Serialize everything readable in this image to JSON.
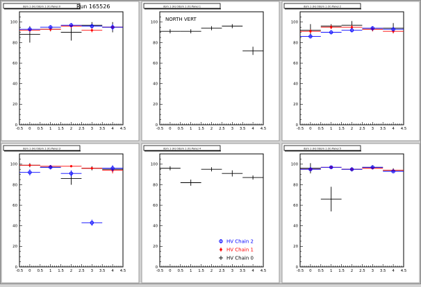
{
  "run_label": "Run 165526",
  "legend": [
    {
      "label": "HV Chain 2",
      "color": "#0000ff",
      "marker": "circle"
    },
    {
      "label": "HV Chain 1",
      "color": "#ff0000",
      "marker": "star"
    },
    {
      "label": "HV Chain 0",
      "color": "#000000",
      "marker": "cross"
    }
  ],
  "chart_data": [
    {
      "type": "scatter",
      "title": "dom 1 (H) Odom 1 (V) Panel 0",
      "annotation": "Run 165526",
      "xlim": [
        -0.5,
        4.5
      ],
      "ylim": [
        0,
        110
      ],
      "xticks": [
        "-0.5",
        "0",
        "0.5",
        "1",
        "1.5",
        "2",
        "2.5",
        "3",
        "3.5",
        "4",
        "4.5"
      ],
      "yticks": [
        "0",
        "20",
        "40",
        "60",
        "80",
        "100"
      ],
      "series": [
        {
          "name": "HV Chain 0",
          "color": "#000000",
          "points": [
            {
              "x": 0,
              "y": 88,
              "yerr": 8
            },
            {
              "x": 1,
              "y": 93,
              "yerr": 2
            },
            {
              "x": 2,
              "y": 90,
              "yerr": 8
            },
            {
              "x": 3,
              "y": 97,
              "yerr": 3
            },
            {
              "x": 4,
              "y": 95,
              "yerr": 5
            }
          ]
        },
        {
          "name": "HV Chain 1",
          "color": "#ff0000",
          "points": [
            {
              "x": 0,
              "y": 92,
              "yerr": 2
            },
            {
              "x": 1,
              "y": 93,
              "yerr": 2
            },
            {
              "x": 2,
              "y": 96,
              "yerr": 2
            },
            {
              "x": 3,
              "y": 92,
              "yerr": 2
            },
            {
              "x": 4,
              "y": 95,
              "yerr": 2
            }
          ]
        },
        {
          "name": "HV Chain 2",
          "color": "#0000ff",
          "points": [
            {
              "x": 0,
              "y": 93,
              "yerr": 2
            },
            {
              "x": 1,
              "y": 95,
              "yerr": 2
            },
            {
              "x": 2,
              "y": 97,
              "yerr": 2
            },
            {
              "x": 3,
              "y": 96,
              "yerr": 2
            },
            {
              "x": 4,
              "y": 95,
              "yerr": 3
            }
          ]
        }
      ]
    },
    {
      "type": "scatter",
      "title": "dom 1 (H) Odom 1 (V) Panel 1",
      "annotation": "NORTH VERT",
      "xlim": [
        -0.5,
        4.5
      ],
      "ylim": [
        0,
        110
      ],
      "xticks": [
        "-0.5",
        "0",
        "0.5",
        "1",
        "1.5",
        "2",
        "2.5",
        "3",
        "3.5",
        "4",
        "4.5"
      ],
      "yticks": [
        "0",
        "20",
        "40",
        "60",
        "80",
        "100"
      ],
      "series": [
        {
          "name": "HV Chain 0",
          "color": "#000000",
          "points": [
            {
              "x": 0,
              "y": 91,
              "yerr": 2
            },
            {
              "x": 1,
              "y": 91,
              "yerr": 2
            },
            {
              "x": 2,
              "y": 94,
              "yerr": 2
            },
            {
              "x": 3,
              "y": 96,
              "yerr": 2
            },
            {
              "x": 4,
              "y": 72,
              "yerr": 4
            }
          ]
        }
      ]
    },
    {
      "type": "scatter",
      "title": "dom 1 (H) Odom 1 (V) Panel 2",
      "annotation": "",
      "xlim": [
        -0.5,
        4.5
      ],
      "ylim": [
        0,
        110
      ],
      "xticks": [
        "-0.5",
        "0",
        "0.5",
        "1",
        "1.5",
        "2",
        "2.5",
        "3",
        "3.5",
        "4",
        "4.5"
      ],
      "yticks": [
        "0",
        "20",
        "40",
        "60",
        "80",
        "100"
      ],
      "series": [
        {
          "name": "HV Chain 0",
          "color": "#000000",
          "points": [
            {
              "x": 0,
              "y": 92,
              "yerr": 6
            },
            {
              "x": 1,
              "y": 96,
              "yerr": 2
            },
            {
              "x": 2,
              "y": 97,
              "yerr": 4
            },
            {
              "x": 3,
              "y": 93,
              "yerr": 2
            },
            {
              "x": 4,
              "y": 94,
              "yerr": 5
            }
          ]
        },
        {
          "name": "HV Chain 1",
          "color": "#ff0000",
          "points": [
            {
              "x": 0,
              "y": 91,
              "yerr": 2
            },
            {
              "x": 1,
              "y": 95,
              "yerr": 2
            },
            {
              "x": 2,
              "y": 95,
              "yerr": 2
            },
            {
              "x": 3,
              "y": 93,
              "yerr": 2
            },
            {
              "x": 4,
              "y": 91,
              "yerr": 2
            }
          ]
        },
        {
          "name": "HV Chain 2",
          "color": "#0000ff",
          "points": [
            {
              "x": 0,
              "y": 86,
              "yerr": 2
            },
            {
              "x": 1,
              "y": 90,
              "yerr": 2
            },
            {
              "x": 2,
              "y": 92,
              "yerr": 2
            },
            {
              "x": 3,
              "y": 94,
              "yerr": 2
            },
            {
              "x": 4,
              "y": 93,
              "yerr": 2
            }
          ]
        }
      ]
    },
    {
      "type": "scatter",
      "title": "dom 1 (H) Odom 1 (V) Panel 3",
      "annotation": "",
      "xlim": [
        -0.5,
        4.5
      ],
      "ylim": [
        0,
        110
      ],
      "xticks": [
        "-0.5",
        "0",
        "0.5",
        "1",
        "1.5",
        "2",
        "2.5",
        "3",
        "3.5",
        "4",
        "4.5"
      ],
      "yticks": [
        "0",
        "20",
        "40",
        "60",
        "80",
        "100"
      ],
      "series": [
        {
          "name": "HV Chain 0",
          "color": "#000000",
          "points": [
            {
              "x": 0,
              "y": 99,
              "yerr": 2
            },
            {
              "x": 1,
              "y": 97,
              "yerr": 2
            },
            {
              "x": 2,
              "y": 86,
              "yerr": 6
            },
            {
              "x": 3,
              "y": 96,
              "yerr": 2
            },
            {
              "x": 4,
              "y": 95,
              "yerr": 3
            }
          ]
        },
        {
          "name": "HV Chain 1",
          "color": "#ff0000",
          "points": [
            {
              "x": 0,
              "y": 99,
              "yerr": 1
            },
            {
              "x": 1,
              "y": 98,
              "yerr": 1
            },
            {
              "x": 2,
              "y": 98,
              "yerr": 1
            },
            {
              "x": 3,
              "y": 96,
              "yerr": 1
            },
            {
              "x": 4,
              "y": 94,
              "yerr": 3
            }
          ]
        },
        {
          "name": "HV Chain 2",
          "color": "#0000ff",
          "points": [
            {
              "x": 0,
              "y": 92,
              "yerr": 3
            },
            {
              "x": 1,
              "y": 97,
              "yerr": 2
            },
            {
              "x": 2,
              "y": 91,
              "yerr": 3
            },
            {
              "x": 3,
              "y": 43,
              "yerr": 3
            },
            {
              "x": 4,
              "y": 96,
              "yerr": 3
            }
          ]
        }
      ]
    },
    {
      "type": "scatter",
      "title": "dom 1 (H) Odom 1 (V) Panel 4",
      "annotation": "",
      "xlim": [
        -0.5,
        4.5
      ],
      "ylim": [
        0,
        110
      ],
      "xticks": [
        "-0.5",
        "0",
        "0.5",
        "1",
        "1.5",
        "2",
        "2.5",
        "3",
        "3.5",
        "4",
        "4.5"
      ],
      "yticks": [
        "0",
        "20",
        "40",
        "60",
        "80",
        "100"
      ],
      "series": [
        {
          "name": "HV Chain 0",
          "color": "#000000",
          "points": [
            {
              "x": 0,
              "y": 96,
              "yerr": 2
            },
            {
              "x": 1,
              "y": 82,
              "yerr": 3
            },
            {
              "x": 2,
              "y": 95,
              "yerr": 2
            },
            {
              "x": 3,
              "y": 91,
              "yerr": 3
            },
            {
              "x": 4,
              "y": 87,
              "yerr": 2
            }
          ]
        }
      ]
    },
    {
      "type": "scatter",
      "title": "dom 1 (H) Odom 1 (V) Panel 5",
      "annotation": "",
      "xlim": [
        -0.5,
        4.5
      ],
      "ylim": [
        0,
        110
      ],
      "xticks": [
        "-0.5",
        "0",
        "0.5",
        "1",
        "1.5",
        "2",
        "2.5",
        "3",
        "3.5",
        "4",
        "4.5"
      ],
      "yticks": [
        "0",
        "20",
        "40",
        "60",
        "80",
        "100"
      ],
      "series": [
        {
          "name": "HV Chain 0",
          "color": "#000000",
          "points": [
            {
              "x": 0,
              "y": 96,
              "yerr": 5
            },
            {
              "x": 1,
              "y": 66,
              "yerr": 12
            },
            {
              "x": 2,
              "y": 95,
              "yerr": 2
            },
            {
              "x": 3,
              "y": 97,
              "yerr": 2
            },
            {
              "x": 4,
              "y": 94,
              "yerr": 2
            }
          ]
        },
        {
          "name": "HV Chain 1",
          "color": "#ff0000",
          "points": [
            {
              "x": 0,
              "y": 95,
              "yerr": 2
            },
            {
              "x": 1,
              "y": 97,
              "yerr": 1
            },
            {
              "x": 2,
              "y": 95,
              "yerr": 1
            },
            {
              "x": 3,
              "y": 96,
              "yerr": 1
            },
            {
              "x": 4,
              "y": 94,
              "yerr": 1
            }
          ]
        },
        {
          "name": "HV Chain 2",
          "color": "#0000ff",
          "points": [
            {
              "x": 0,
              "y": 95,
              "yerr": 2
            },
            {
              "x": 1,
              "y": 97,
              "yerr": 1
            },
            {
              "x": 2,
              "y": 95,
              "yerr": 1
            },
            {
              "x": 3,
              "y": 97,
              "yerr": 1
            },
            {
              "x": 4,
              "y": 93,
              "yerr": 1
            }
          ]
        }
      ]
    }
  ]
}
